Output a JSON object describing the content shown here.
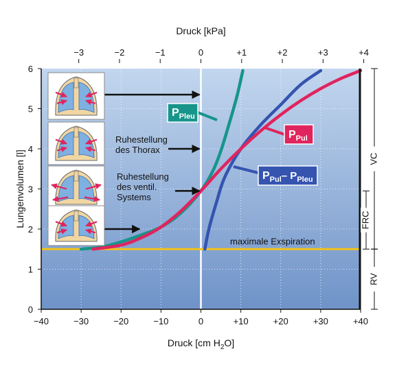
{
  "chart_data": {
    "type": "line",
    "xlabel_bottom": "Druck [cm H",
    "xlabel_bottom_sub": "2",
    "xlabel_bottom_end": "O]",
    "xlabel_top": "Druck [kPa]",
    "ylabel": "Lungenvolumen [l]",
    "xlim": [
      -40,
      40
    ],
    "ylim": [
      0,
      6
    ],
    "x_ticks": [
      "−40",
      "−30",
      "−20",
      "−10",
      "0",
      "+10",
      "+20",
      "+30",
      "+40"
    ],
    "x_tick_values": [
      -40,
      -30,
      -20,
      -10,
      0,
      10,
      20,
      30,
      40
    ],
    "top_ticks": [
      "−3",
      "−2",
      "−1",
      "0",
      "+1",
      "+2",
      "+3",
      "+4"
    ],
    "top_tick_values_kpa": [
      -3,
      -2,
      -1,
      0,
      1,
      2,
      3,
      4
    ],
    "y_ticks": [
      "0",
      "1",
      "2",
      "3",
      "4",
      "5",
      "6"
    ],
    "y_tick_values": [
      0,
      1,
      2,
      3,
      4,
      5,
      6
    ],
    "series": [
      {
        "name": "PPleu",
        "label_main": "P",
        "label_sub": "Pleu",
        "color": "#17958a",
        "points": [
          [
            -30,
            1.5
          ],
          [
            -25,
            1.55
          ],
          [
            -20,
            1.68
          ],
          [
            -15,
            1.85
          ],
          [
            -10,
            2.05
          ],
          [
            -5,
            2.4
          ],
          [
            0,
            2.95
          ],
          [
            3,
            3.45
          ],
          [
            5,
            3.95
          ],
          [
            7,
            4.6
          ],
          [
            9,
            5.3
          ],
          [
            10.5,
            5.95
          ]
        ]
      },
      {
        "name": "PPul",
        "label_main": "P",
        "label_sub": "Pul",
        "color": "#e0245e",
        "points": [
          [
            -27,
            1.5
          ],
          [
            -20,
            1.6
          ],
          [
            -15,
            1.78
          ],
          [
            -10,
            2.05
          ],
          [
            -5,
            2.45
          ],
          [
            0,
            2.95
          ],
          [
            5,
            3.5
          ],
          [
            10,
            4.0
          ],
          [
            15,
            4.45
          ],
          [
            20,
            4.85
          ],
          [
            25,
            5.2
          ],
          [
            30,
            5.5
          ],
          [
            35,
            5.75
          ],
          [
            40,
            5.95
          ]
        ]
      },
      {
        "name": "PPul–PPleu",
        "label_main": "P",
        "label_sub": "Pul",
        "label_mid": "– P",
        "label_sub2": "Pleu",
        "color": "#3554b0",
        "points": [
          [
            1,
            1.5
          ],
          [
            2,
            2.0
          ],
          [
            4,
            2.7
          ],
          [
            6,
            3.3
          ],
          [
            10,
            4.0
          ],
          [
            15,
            4.6
          ],
          [
            20,
            5.1
          ],
          [
            25,
            5.6
          ],
          [
            30,
            5.95
          ]
        ]
      }
    ],
    "reference_line": {
      "label": "maximale Exspiration",
      "y": 1.5,
      "color": "#f2c318"
    },
    "annotations": [
      {
        "lines": [
          "Ruhestellung",
          "des Thorax"
        ]
      },
      {
        "lines": [
          "Ruhestellung",
          "des ventil.",
          "Systems"
        ]
      }
    ],
    "volume_brackets": [
      {
        "label": "VC",
        "from": 6.0,
        "to": 1.5
      },
      {
        "label": "FRC",
        "from": 2.95,
        "to": 1.5
      },
      {
        "label": "RV",
        "from": 1.5,
        "to": 0
      }
    ],
    "arrow_targets": [
      {
        "x": 0,
        "y": 5.35
      },
      {
        "x": 0,
        "y": 4.0
      },
      {
        "x": 0,
        "y": 2.95
      },
      {
        "x": -15,
        "y": 2.0
      }
    ],
    "colors": {
      "bg_top": "#c2d6ee",
      "bg_bottom": "#6f93c8",
      "lung_fill": "#7fb0e2",
      "thorax_fill": "#f1d6a3",
      "arrow_red": "#e0245e"
    }
  }
}
